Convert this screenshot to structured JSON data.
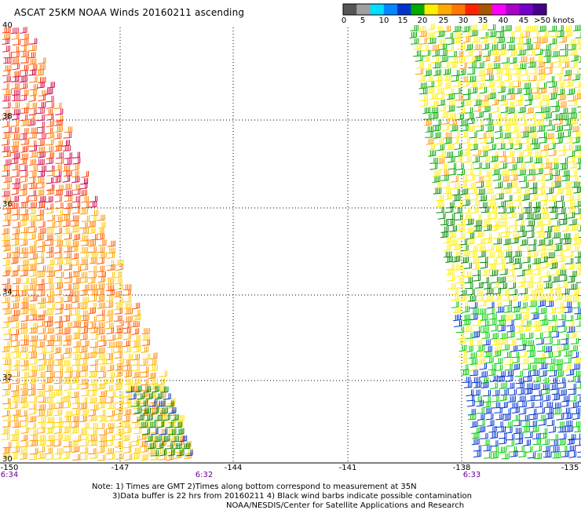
{
  "title": "ASCAT 25KM NOAA Winds 20160211 ascending",
  "legend": {
    "colors": [
      "#555555",
      "#a0a0a0",
      "#00ddff",
      "#0088ff",
      "#0033cc",
      "#00aa00",
      "#ffee00",
      "#ffaa00",
      "#ff7700",
      "#ff2200",
      "#aa5500",
      "#ff00ff",
      "#aa00cc",
      "#7700cc",
      "#440088"
    ],
    "labels": [
      "0",
      "5",
      "10",
      "15",
      "20",
      "25",
      "30",
      "35",
      "40",
      "45"
    ],
    "unit": ">50 knots"
  },
  "lat_labels": [
    "40",
    "38",
    "36",
    "34",
    "32",
    "30"
  ],
  "lon_labels": [
    "-150",
    "-147",
    "-144",
    "-141",
    "-138",
    "-135"
  ],
  "time_labels": [
    "6:34",
    "6:32",
    "6:33"
  ],
  "notes": {
    "line1": "Note: 1) Times are GMT 2)Times along bottom correspond to measurement at 35N",
    "line2": "3)Data buffer is 22 hrs from 20160211 4) Black wind barbs indicate possible contamination",
    "line3": "NOAA/NESDIS/Center for Satellite Applications and Research"
  },
  "swaths": {
    "west_palette": [
      "#ffdd00",
      "#ffcc00",
      "#ffaa00",
      "#ff8800",
      "#ff7700",
      "#ff5500",
      "#ff3300",
      "#dd2244",
      "#cc0044"
    ],
    "east_palette": [
      "#ffee00",
      "#ffcc00",
      "#00aa00",
      "#008800",
      "#00cc00",
      "#0033cc",
      "#0055ff",
      "#ff9900"
    ]
  }
}
